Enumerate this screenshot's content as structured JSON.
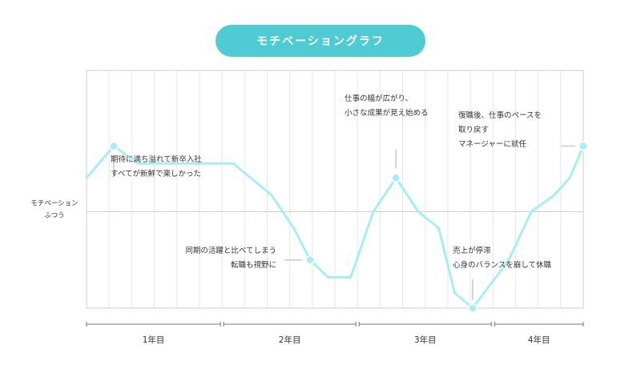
{
  "title": "モチベーショングラフ",
  "chart_data": {
    "type": "line",
    "title": "モチベーショングラフ",
    "ylabel": [
      "モチベーション",
      "ふつう"
    ],
    "ylim": [
      -100,
      100
    ],
    "x_range": [
      0,
      22
    ],
    "grid": true,
    "periods": [
      {
        "label": "1年目",
        "from": 0,
        "to": 6
      },
      {
        "label": "2年目",
        "from": 6,
        "to": 12
      },
      {
        "label": "3年目",
        "from": 12,
        "to": 18
      },
      {
        "label": "4年目",
        "from": 18,
        "to": 22
      }
    ],
    "series": [
      {
        "x": [
          0,
          1.2,
          2.3,
          6.5,
          8.2,
          9.2,
          9.9,
          10.7,
          11.7,
          12.7,
          13.7,
          14.7,
          15.6,
          16.3,
          17.1,
          18.7,
          19.7,
          20.7,
          21.4,
          22
        ],
        "values": [
          35,
          68,
          50,
          50,
          17,
          -18,
          -50,
          -68,
          -68,
          0,
          35,
          0,
          -17,
          -84,
          -100,
          -50,
          0,
          17,
          35,
          68
        ]
      }
    ],
    "annotations": [
      {
        "lines": [
          "期待に満ち溢れて新卒入社",
          "すべてが新鮮で楽しかった"
        ],
        "x": 1.2,
        "y": 68
      },
      {
        "lines": [
          "同期の活躍と比べてしまう",
          "転職も視野に"
        ],
        "x": 9.9,
        "y": -50
      },
      {
        "lines": [
          "仕事の幅が広がり、",
          "小さな成果が見え始める"
        ],
        "x": 13.7,
        "y": 35
      },
      {
        "lines": [
          "売上が停滞",
          "心身のバランスを崩して休職"
        ],
        "x": 17.1,
        "y": -100
      },
      {
        "lines": [
          "復職後、仕事のペースを",
          "取り戻す",
          "マネージャーに就任"
        ],
        "x": 22,
        "y": 68
      }
    ]
  },
  "colors": {
    "accent": "#4fcbd3",
    "line": "#a8ecf6",
    "grid": "#e6e6e6"
  }
}
